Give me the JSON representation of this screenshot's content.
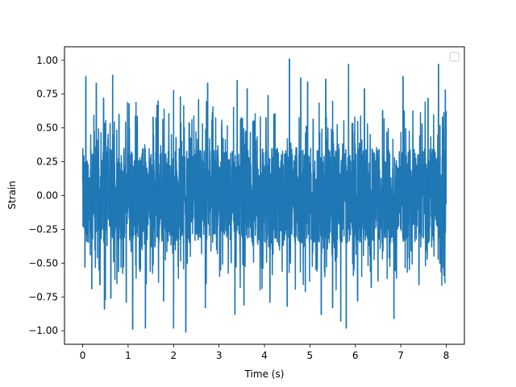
{
  "chart_data": {
    "type": "line",
    "title": "",
    "xlabel": "Time (s)",
    "ylabel": "Strain",
    "xlim": [
      -0.4,
      8.4
    ],
    "ylim": [
      -1.1,
      1.1
    ],
    "x_ticks": [
      "0",
      "1",
      "2",
      "3",
      "4",
      "5",
      "6",
      "7",
      "8"
    ],
    "y_ticks": [
      "−1.00",
      "−0.75",
      "−0.50",
      "−0.25",
      "0.00",
      "0.25",
      "0.50",
      "0.75",
      "1.00"
    ],
    "grid": false,
    "legend": "top-right (empty)",
    "series": [
      {
        "color": "#1f77b4",
        "x_range": [
          0,
          8
        ],
        "core_amplitude": 0.35,
        "peaks": [
          {
            "x": 0.07,
            "y": 0.88
          },
          {
            "x": 0.3,
            "y": 0.83
          },
          {
            "x": 0.46,
            "y": 0.72
          },
          {
            "x": 0.66,
            "y": 0.89
          },
          {
            "x": 0.8,
            "y": 0.6
          },
          {
            "x": 1.02,
            "y": 0.68
          },
          {
            "x": 1.55,
            "y": 0.58
          },
          {
            "x": 1.66,
            "y": 0.7
          },
          {
            "x": 2.0,
            "y": 0.78
          },
          {
            "x": 2.15,
            "y": 0.73
          },
          {
            "x": 2.55,
            "y": 0.71
          },
          {
            "x": 2.75,
            "y": 0.83
          },
          {
            "x": 3.4,
            "y": 0.85
          },
          {
            "x": 3.62,
            "y": 0.79
          },
          {
            "x": 4.08,
            "y": 0.74
          },
          {
            "x": 4.55,
            "y": 1.01
          },
          {
            "x": 4.8,
            "y": 0.87
          },
          {
            "x": 4.95,
            "y": 0.84
          },
          {
            "x": 5.35,
            "y": 0.86
          },
          {
            "x": 5.5,
            "y": 0.7
          },
          {
            "x": 5.85,
            "y": 0.97
          },
          {
            "x": 6.2,
            "y": 0.79
          },
          {
            "x": 6.6,
            "y": 0.63
          },
          {
            "x": 7.05,
            "y": 0.88
          },
          {
            "x": 7.6,
            "y": 0.72
          },
          {
            "x": 7.83,
            "y": 0.97
          },
          {
            "x": 7.98,
            "y": 0.78
          }
        ],
        "troughs": [
          {
            "x": 0.05,
            "y": -0.53
          },
          {
            "x": 0.2,
            "y": -0.69
          },
          {
            "x": 0.38,
            "y": -0.66
          },
          {
            "x": 0.5,
            "y": -0.77
          },
          {
            "x": 0.48,
            "y": -0.84
          },
          {
            "x": 0.62,
            "y": -0.76
          },
          {
            "x": 0.96,
            "y": -0.79
          },
          {
            "x": 1.1,
            "y": -0.99
          },
          {
            "x": 1.38,
            "y": -0.98
          },
          {
            "x": 1.78,
            "y": -0.78
          },
          {
            "x": 2.0,
            "y": -0.98
          },
          {
            "x": 2.27,
            "y": -1.01
          },
          {
            "x": 2.7,
            "y": -0.83
          },
          {
            "x": 3.35,
            "y": -0.88
          },
          {
            "x": 3.55,
            "y": -0.81
          },
          {
            "x": 4.12,
            "y": -0.79
          },
          {
            "x": 4.5,
            "y": -0.82
          },
          {
            "x": 4.9,
            "y": -0.71
          },
          {
            "x": 5.25,
            "y": -0.88
          },
          {
            "x": 5.5,
            "y": -0.83
          },
          {
            "x": 5.68,
            "y": -0.93
          },
          {
            "x": 5.8,
            "y": -0.98
          },
          {
            "x": 6.05,
            "y": -0.78
          },
          {
            "x": 6.35,
            "y": -0.68
          },
          {
            "x": 6.85,
            "y": -0.91
          },
          {
            "x": 7.4,
            "y": -0.66
          },
          {
            "x": 7.95,
            "y": -0.59
          }
        ]
      }
    ]
  }
}
